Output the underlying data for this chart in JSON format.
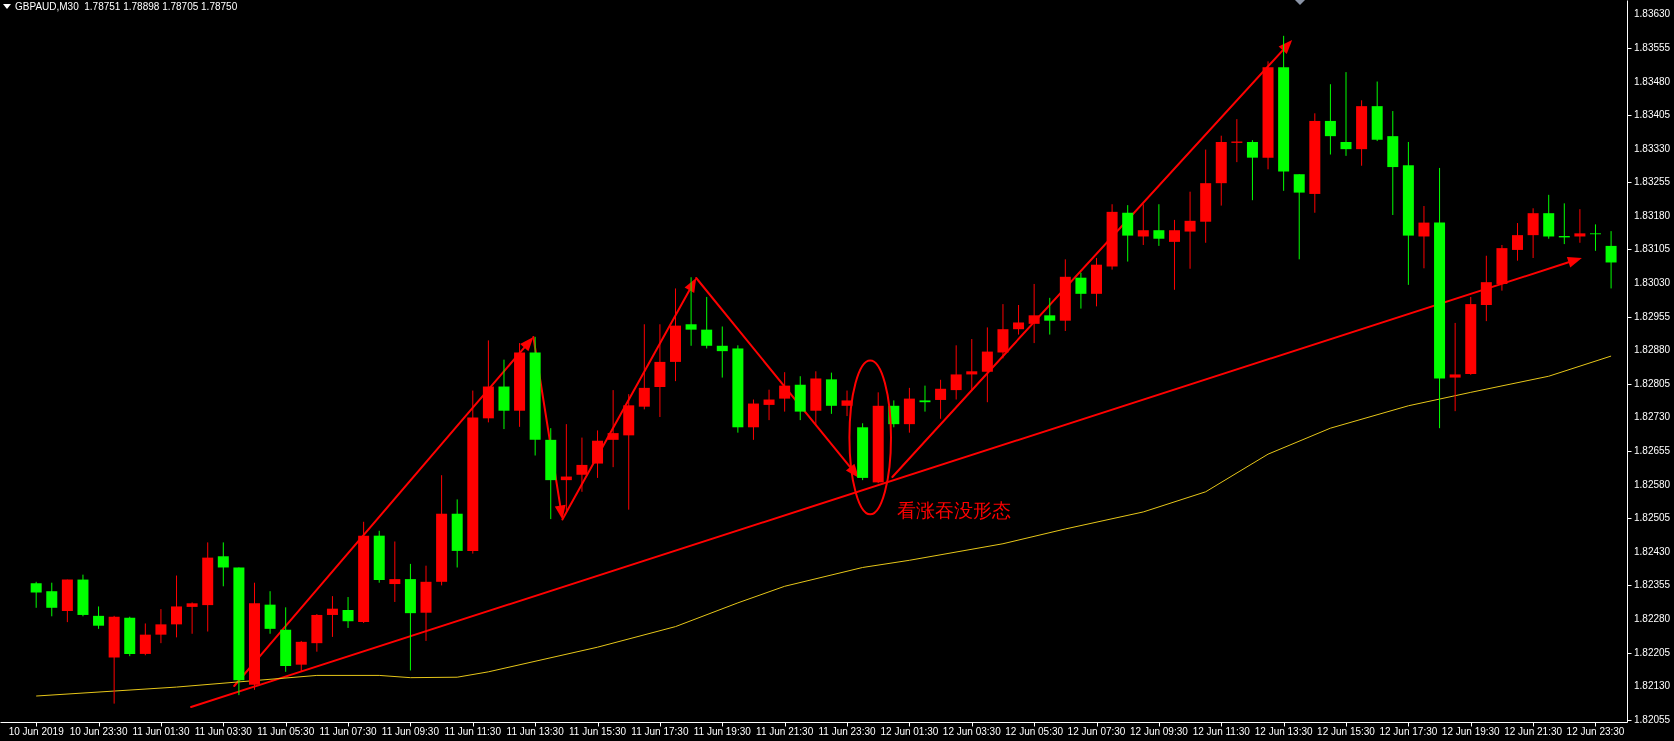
{
  "chart_data": {
    "type": "candlestick",
    "title": "GBPAUD,M30  1.78751 1.78898 1.78705 1.78750",
    "x": [
      "2019-06-10T21:30",
      "2019-06-10T22:00",
      "2019-06-10T22:30",
      "2019-06-10T23:00",
      "2019-06-10T23:30",
      "2019-06-11T00:00",
      "2019-06-11T00:30",
      "2019-06-11T01:00",
      "2019-06-11T01:30",
      "2019-06-11T02:00",
      "2019-06-11T02:30",
      "2019-06-11T03:00",
      "2019-06-11T03:30",
      "2019-06-11T04:00",
      "2019-06-11T04:30",
      "2019-06-11T05:00",
      "2019-06-11T05:30",
      "2019-06-11T06:00",
      "2019-06-11T06:30",
      "2019-06-11T07:00",
      "2019-06-11T07:30",
      "2019-06-11T08:00",
      "2019-06-11T08:30",
      "2019-06-11T09:00",
      "2019-06-11T09:30",
      "2019-06-11T10:00",
      "2019-06-11T10:30",
      "2019-06-11T11:00",
      "2019-06-11T11:30",
      "2019-06-11T12:00",
      "2019-06-11T12:30",
      "2019-06-11T13:00",
      "2019-06-11T13:30",
      "2019-06-11T14:00",
      "2019-06-11T14:30",
      "2019-06-11T15:00",
      "2019-06-11T15:30",
      "2019-06-11T16:00",
      "2019-06-11T16:30",
      "2019-06-11T17:00",
      "2019-06-11T17:30",
      "2019-06-11T18:00",
      "2019-06-11T18:30",
      "2019-06-11T19:00",
      "2019-06-11T19:30",
      "2019-06-11T20:00",
      "2019-06-11T20:30",
      "2019-06-11T21:00",
      "2019-06-11T21:30",
      "2019-06-11T22:00",
      "2019-06-11T22:30",
      "2019-06-11T23:00",
      "2019-06-11T23:30",
      "2019-06-12T00:00",
      "2019-06-12T00:30",
      "2019-06-12T01:00",
      "2019-06-12T01:30",
      "2019-06-12T02:00",
      "2019-06-12T02:30",
      "2019-06-12T03:00",
      "2019-06-12T03:30",
      "2019-06-12T04:00",
      "2019-06-12T04:30",
      "2019-06-12T05:00",
      "2019-06-12T05:30",
      "2019-06-12T06:00",
      "2019-06-12T06:30",
      "2019-06-12T07:00",
      "2019-06-12T07:30",
      "2019-06-12T08:00",
      "2019-06-12T08:30",
      "2019-06-12T09:00",
      "2019-06-12T09:30",
      "2019-06-12T10:00",
      "2019-06-12T10:30",
      "2019-06-12T11:00",
      "2019-06-12T11:30",
      "2019-06-12T12:00",
      "2019-06-12T12:30",
      "2019-06-12T13:00",
      "2019-06-12T13:30",
      "2019-06-12T14:00",
      "2019-06-12T14:30",
      "2019-06-12T15:00",
      "2019-06-12T15:30",
      "2019-06-12T16:00",
      "2019-06-12T16:30",
      "2019-06-12T17:00",
      "2019-06-12T17:30",
      "2019-06-12T18:00",
      "2019-06-12T18:30",
      "2019-06-12T19:00",
      "2019-06-12T19:30",
      "2019-06-12T20:00",
      "2019-06-12T20:30",
      "2019-06-12T21:00",
      "2019-06-12T21:30",
      "2019-06-12T22:00",
      "2019-06-12T22:30",
      "2019-06-12T23:00",
      "2019-06-12T23:30",
      "2019-06-13T00:00"
    ],
    "ohlc": [
      [
        1.8236,
        1.82363,
        1.82305,
        1.82339
      ],
      [
        1.82342,
        1.82361,
        1.82286,
        1.82305
      ],
      [
        1.82298,
        1.82368,
        1.82273,
        1.82368
      ],
      [
        1.82368,
        1.82379,
        1.82286,
        1.82289
      ],
      [
        1.82287,
        1.82308,
        1.82258,
        1.82265
      ],
      [
        1.82194,
        1.82287,
        1.82091,
        1.82285
      ],
      [
        1.82283,
        1.82285,
        1.82197,
        1.82202
      ],
      [
        1.82202,
        1.8227,
        1.82199,
        1.82245
      ],
      [
        1.82245,
        1.82302,
        1.82226,
        1.82268
      ],
      [
        1.82268,
        1.82377,
        1.82239,
        1.82308
      ],
      [
        1.82307,
        1.82317,
        1.82247,
        1.82315
      ],
      [
        1.82311,
        1.82451,
        1.82252,
        1.82417
      ],
      [
        1.8242,
        1.82451,
        1.82353,
        1.82395
      ],
      [
        1.82395,
        1.82395,
        1.8211,
        1.82143
      ],
      [
        1.82133,
        1.82361,
        1.82122,
        1.82315
      ],
      [
        1.82312,
        1.82342,
        1.82247,
        1.82258
      ],
      [
        1.82256,
        1.82306,
        1.82162,
        1.82175
      ],
      [
        1.82178,
        1.82231,
        1.82162,
        1.82229
      ],
      [
        1.82226,
        1.82291,
        1.82207,
        1.82289
      ],
      [
        1.82289,
        1.82331,
        1.8224,
        1.82303
      ],
      [
        1.823,
        1.82329,
        1.8226,
        1.82275
      ],
      [
        1.82273,
        1.82497,
        1.82271,
        1.82466
      ],
      [
        1.82466,
        1.82477,
        1.82361,
        1.82367
      ],
      [
        1.82358,
        1.82453,
        1.82318,
        1.82369
      ],
      [
        1.82369,
        1.82403,
        1.82165,
        1.82293
      ],
      [
        1.82294,
        1.82399,
        1.82231,
        1.82363
      ],
      [
        1.82363,
        1.82601,
        1.82355,
        1.82515
      ],
      [
        1.82515,
        1.82547,
        1.82395,
        1.82432
      ],
      [
        1.82432,
        1.8279,
        1.82426,
        1.8273
      ],
      [
        1.82728,
        1.82902,
        1.82719,
        1.82799
      ],
      [
        1.82799,
        1.82859,
        1.82704,
        1.82745
      ],
      [
        1.82745,
        1.82896,
        1.82709,
        1.82875
      ],
      [
        1.82875,
        1.8291,
        1.82645,
        1.8268
      ],
      [
        1.8268,
        1.82706,
        1.82503,
        1.8259
      ],
      [
        1.8259,
        1.82715,
        1.82522,
        1.82598
      ],
      [
        1.82602,
        1.82685,
        1.82564,
        1.82624
      ],
      [
        1.82627,
        1.82701,
        1.82595,
        1.82678
      ],
      [
        1.8268,
        1.82791,
        1.82619,
        1.82695
      ],
      [
        1.8269,
        1.82782,
        1.82524,
        1.82757
      ],
      [
        1.82754,
        1.82938,
        1.82748,
        1.82796
      ],
      [
        1.82798,
        1.82938,
        1.82731,
        1.82854
      ],
      [
        1.82854,
        1.83018,
        1.82811,
        1.82935
      ],
      [
        1.82938,
        1.83043,
        1.8289,
        1.82926
      ],
      [
        1.82926,
        1.82999,
        1.82884,
        1.8289
      ],
      [
        1.8289,
        1.82933,
        1.82819,
        1.82878
      ],
      [
        1.82884,
        1.82891,
        1.82696,
        1.82708
      ],
      [
        1.82708,
        1.8277,
        1.8268,
        1.82761
      ],
      [
        1.82758,
        1.82792,
        1.82724,
        1.8277
      ],
      [
        1.82772,
        1.82831,
        1.82743,
        1.82801
      ],
      [
        1.82803,
        1.82822,
        1.82724,
        1.82743
      ],
      [
        1.82745,
        1.82833,
        1.82714,
        1.82817
      ],
      [
        1.82815,
        1.8283,
        1.82738,
        1.82756
      ],
      [
        1.82756,
        1.8279,
        1.82733,
        1.82768
      ],
      [
        1.82708,
        1.82717,
        1.8259,
        1.82595
      ],
      [
        1.82585,
        1.82786,
        1.82583,
        1.82756
      ],
      [
        1.82756,
        1.82768,
        1.82708,
        1.82715
      ],
      [
        1.82715,
        1.82796,
        1.82696,
        1.82772
      ],
      [
        1.82768,
        1.82801,
        1.82743,
        1.82764
      ],
      [
        1.82769,
        1.82814,
        1.82727,
        1.82794
      ],
      [
        1.82791,
        1.82891,
        1.8277,
        1.82826
      ],
      [
        1.82826,
        1.82905,
        1.82791,
        1.82833
      ],
      [
        1.82832,
        1.82931,
        1.82764,
        1.82877
      ],
      [
        1.82875,
        1.82983,
        1.82862,
        1.82927
      ],
      [
        1.82927,
        1.82981,
        1.82915,
        1.82942
      ],
      [
        1.82939,
        1.83028,
        1.82896,
        1.82958
      ],
      [
        1.82958,
        1.82997,
        1.82915,
        1.82946
      ],
      [
        1.82946,
        1.83083,
        1.82923,
        1.83044
      ],
      [
        1.83042,
        1.83053,
        1.82973,
        1.83006
      ],
      [
        1.83006,
        1.83086,
        1.82978,
        1.83071
      ],
      [
        1.83067,
        1.83206,
        1.8306,
        1.83189
      ],
      [
        1.83187,
        1.83204,
        1.83078,
        1.83136
      ],
      [
        1.83134,
        1.83206,
        1.83115,
        1.83148
      ],
      [
        1.83148,
        1.83206,
        1.83113,
        1.83129
      ],
      [
        1.83122,
        1.83171,
        1.83015,
        1.83148
      ],
      [
        1.83145,
        1.83234,
        1.83062,
        1.83169
      ],
      [
        1.83167,
        1.83328,
        1.8312,
        1.83253
      ],
      [
        1.83253,
        1.83359,
        1.83203,
        1.83345
      ],
      [
        1.83343,
        1.83396,
        1.833,
        1.83346
      ],
      [
        1.83345,
        1.83349,
        1.83215,
        1.8331
      ],
      [
        1.8331,
        1.83525,
        1.83284,
        1.83512
      ],
      [
        1.83512,
        1.83582,
        1.83236,
        1.83279
      ],
      [
        1.83273,
        1.83273,
        1.83083,
        1.83232
      ],
      [
        1.83229,
        1.83409,
        1.83187,
        1.83392
      ],
      [
        1.83392,
        1.83474,
        1.83317,
        1.83358
      ],
      [
        1.83345,
        1.83501,
        1.83314,
        1.83329
      ],
      [
        1.83329,
        1.83438,
        1.83292,
        1.83425
      ],
      [
        1.83425,
        1.8348,
        1.83347,
        1.8335
      ],
      [
        1.83358,
        1.83414,
        1.83182,
        1.83289
      ],
      [
        1.83293,
        1.83345,
        1.83026,
        1.83136
      ],
      [
        1.83134,
        1.83202,
        1.83063,
        1.83165
      ],
      [
        1.83165,
        1.83287,
        1.82706,
        1.82817
      ],
      [
        1.82819,
        1.82941,
        1.82744,
        1.82826
      ],
      [
        1.82827,
        1.82999,
        1.82825,
        1.82983
      ],
      [
        1.82981,
        1.83091,
        1.82945,
        1.83032
      ],
      [
        1.83028,
        1.83115,
        1.83013,
        1.83108
      ],
      [
        1.83104,
        1.83164,
        1.8308,
        1.83137
      ],
      [
        1.83137,
        1.83197,
        1.83086,
        1.83186
      ],
      [
        1.83186,
        1.83227,
        1.83129,
        1.83134
      ],
      [
        1.83135,
        1.83208,
        1.83117,
        1.83132
      ],
      [
        1.83134,
        1.83195,
        1.8312,
        1.83141
      ],
      [
        1.83141,
        1.83161,
        1.83102,
        1.83139
      ],
      [
        1.83113,
        1.83146,
        1.83018,
        1.83076
      ]
    ],
    "colors": [
      "#00ff00",
      "#00ff00",
      "#ff0000",
      "#00ff00",
      "#00ff00",
      "#ff0000",
      "#00ff00",
      "#ff0000",
      "#ff0000",
      "#ff0000",
      "#ff0000",
      "#ff0000",
      "#00ff00",
      "#00ff00",
      "#ff0000",
      "#00ff00",
      "#00ff00",
      "#ff0000",
      "#ff0000",
      "#ff0000",
      "#00ff00",
      "#ff0000",
      "#00ff00",
      "#ff0000",
      "#00ff00",
      "#ff0000",
      "#ff0000",
      "#00ff00",
      "#ff0000",
      "#ff0000",
      "#00ff00",
      "#ff0000",
      "#00ff00",
      "#00ff00",
      "#ff0000",
      "#ff0000",
      "#ff0000",
      "#ff0000",
      "#ff0000",
      "#ff0000",
      "#ff0000",
      "#ff0000",
      "#00ff00",
      "#00ff00",
      "#00ff00",
      "#00ff00",
      "#ff0000",
      "#ff0000",
      "#ff0000",
      "#00ff00",
      "#ff0000",
      "#00ff00",
      "#ff0000",
      "#00ff00",
      "#ff0000",
      "#00ff00",
      "#ff0000",
      "#00ff00",
      "#ff0000",
      "#ff0000",
      "#ff0000",
      "#ff0000",
      "#ff0000",
      "#ff0000",
      "#ff0000",
      "#00ff00",
      "#ff0000",
      "#00ff00",
      "#ff0000",
      "#ff0000",
      "#00ff00",
      "#ff0000",
      "#00ff00",
      "#ff0000",
      "#ff0000",
      "#ff0000",
      "#ff0000",
      "#ff0000",
      "#00ff00",
      "#ff0000",
      "#00ff00",
      "#00ff00",
      "#ff0000",
      "#00ff00",
      "#00ff00",
      "#ff0000",
      "#00ff00",
      "#00ff00",
      "#00ff00",
      "#ff0000",
      "#00ff00",
      "#ff0000",
      "#ff0000",
      "#ff0000",
      "#ff0000",
      "#ff0000",
      "#ff0000",
      "#00ff00",
      "#00ff00",
      "#ff0000",
      "#00ff00",
      "#00ff00"
    ],
    "series": [
      {
        "type": "line",
        "color": "#e6c619",
        "x": [
          "2019-06-10T21:30",
          "2019-06-11T02:00",
          "2019-06-11T06:30",
          "2019-06-11T08:30",
          "2019-06-11T09:30",
          "2019-06-11T11:00",
          "2019-06-11T12:00",
          "2019-06-11T15:30",
          "2019-06-11T18:00",
          "2019-06-11T20:00",
          "2019-06-11T21:30",
          "2019-06-12T00:00",
          "2019-06-12T01:30",
          "2019-06-12T04:30",
          "2019-06-12T06:30",
          "2019-06-12T09:00",
          "2019-06-12T11:00",
          "2019-06-12T13:00",
          "2019-06-12T15:00",
          "2019-06-12T17:30",
          "2019-06-12T19:30",
          "2019-06-12T22:00",
          "2019-06-13T00:00"
        ],
        "values": [
          1.82108,
          1.82128,
          1.82154,
          1.82154,
          1.82149,
          1.8215,
          1.82162,
          1.82217,
          1.82263,
          1.82316,
          1.82353,
          1.82395,
          1.82411,
          1.82448,
          1.82481,
          1.82519,
          1.82564,
          1.82648,
          1.82706,
          1.82756,
          1.82786,
          1.82822,
          1.82867
        ]
      }
    ],
    "annotations": [
      {
        "text": "看涨吞没形态",
        "x": "2019-06-12T00:30",
        "y": 1.82585
      }
    ],
    "xlim": [
      "2019-06-10T20:30",
      "2019-06-13T00:21"
    ],
    "ylim": [
      1.8205,
      1.83662
    ],
    "xticks": [
      {
        "value": "2019-06-10T21:30",
        "label": "10 Jun 2019"
      },
      {
        "value": "2019-06-10T23:30",
        "label": "10 Jun 23:30"
      },
      {
        "value": "2019-06-11T01:30",
        "label": "11 Jun 01:30"
      },
      {
        "value": "2019-06-11T03:30",
        "label": "11 Jun 03:30"
      },
      {
        "value": "2019-06-11T05:30",
        "label": "11 Jun 05:30"
      },
      {
        "value": "2019-06-11T07:30",
        "label": "11 Jun 07:30"
      },
      {
        "value": "2019-06-11T09:30",
        "label": "11 Jun 09:30"
      },
      {
        "value": "2019-06-11T11:30",
        "label": "11 Jun 11:30"
      },
      {
        "value": "2019-06-11T13:30",
        "label": "11 Jun 13:30"
      },
      {
        "value": "2019-06-11T15:30",
        "label": "11 Jun 15:30"
      },
      {
        "value": "2019-06-11T17:30",
        "label": "11 Jun 17:30"
      },
      {
        "value": "2019-06-11T19:30",
        "label": "11 Jun 19:30"
      },
      {
        "value": "2019-06-11T21:30",
        "label": "11 Jun 21:30"
      },
      {
        "value": "2019-06-11T23:30",
        "label": "11 Jun 23:30"
      },
      {
        "value": "2019-06-12T01:30",
        "label": "12 Jun 01:30"
      },
      {
        "value": "2019-06-12T03:30",
        "label": "12 Jun 03:30"
      },
      {
        "value": "2019-06-12T05:30",
        "label": "12 Jun 05:30"
      },
      {
        "value": "2019-06-12T07:30",
        "label": "12 Jun 07:30"
      },
      {
        "value": "2019-06-12T09:30",
        "label": "12 Jun 09:30"
      },
      {
        "value": "2019-06-12T11:30",
        "label": "12 Jun 11:30"
      },
      {
        "value": "2019-06-12T13:30",
        "label": "12 Jun 13:30"
      },
      {
        "value": "2019-06-12T15:30",
        "label": "12 Jun 15:30"
      },
      {
        "value": "2019-06-12T17:30",
        "label": "12 Jun 17:30"
      },
      {
        "value": "2019-06-12T19:30",
        "label": "12 Jun 19:30"
      },
      {
        "value": "2019-06-12T21:30",
        "label": "12 Jun 21:30"
      },
      {
        "value": "2019-06-12T23:30",
        "label": "12 Jun 23:30"
      }
    ],
    "yticks": [
      1.82055,
      {
        "value": 1.8213,
        "label": "1.82130"
      },
      1.82205,
      {
        "value": 1.8228,
        "label": "1.82280"
      },
      1.82355,
      {
        "value": 1.8243,
        "label": "1.82430"
      },
      1.82505,
      {
        "value": 1.8258,
        "label": "1.82580"
      },
      1.82655,
      {
        "value": 1.8273,
        "label": "1.82730"
      },
      1.82805,
      {
        "value": 1.8288,
        "label": "1.82880"
      },
      1.82955,
      {
        "value": 1.8303,
        "label": "1.83030"
      },
      1.83105,
      {
        "value": 1.8318,
        "label": "1.83180"
      },
      1.83255,
      {
        "value": 1.8333,
        "label": "1.83330"
      },
      1.83405,
      {
        "value": 1.8348,
        "label": "1.83480"
      },
      1.83555,
      {
        "value": 1.8363,
        "label": "1.83630"
      }
    ]
  }
}
